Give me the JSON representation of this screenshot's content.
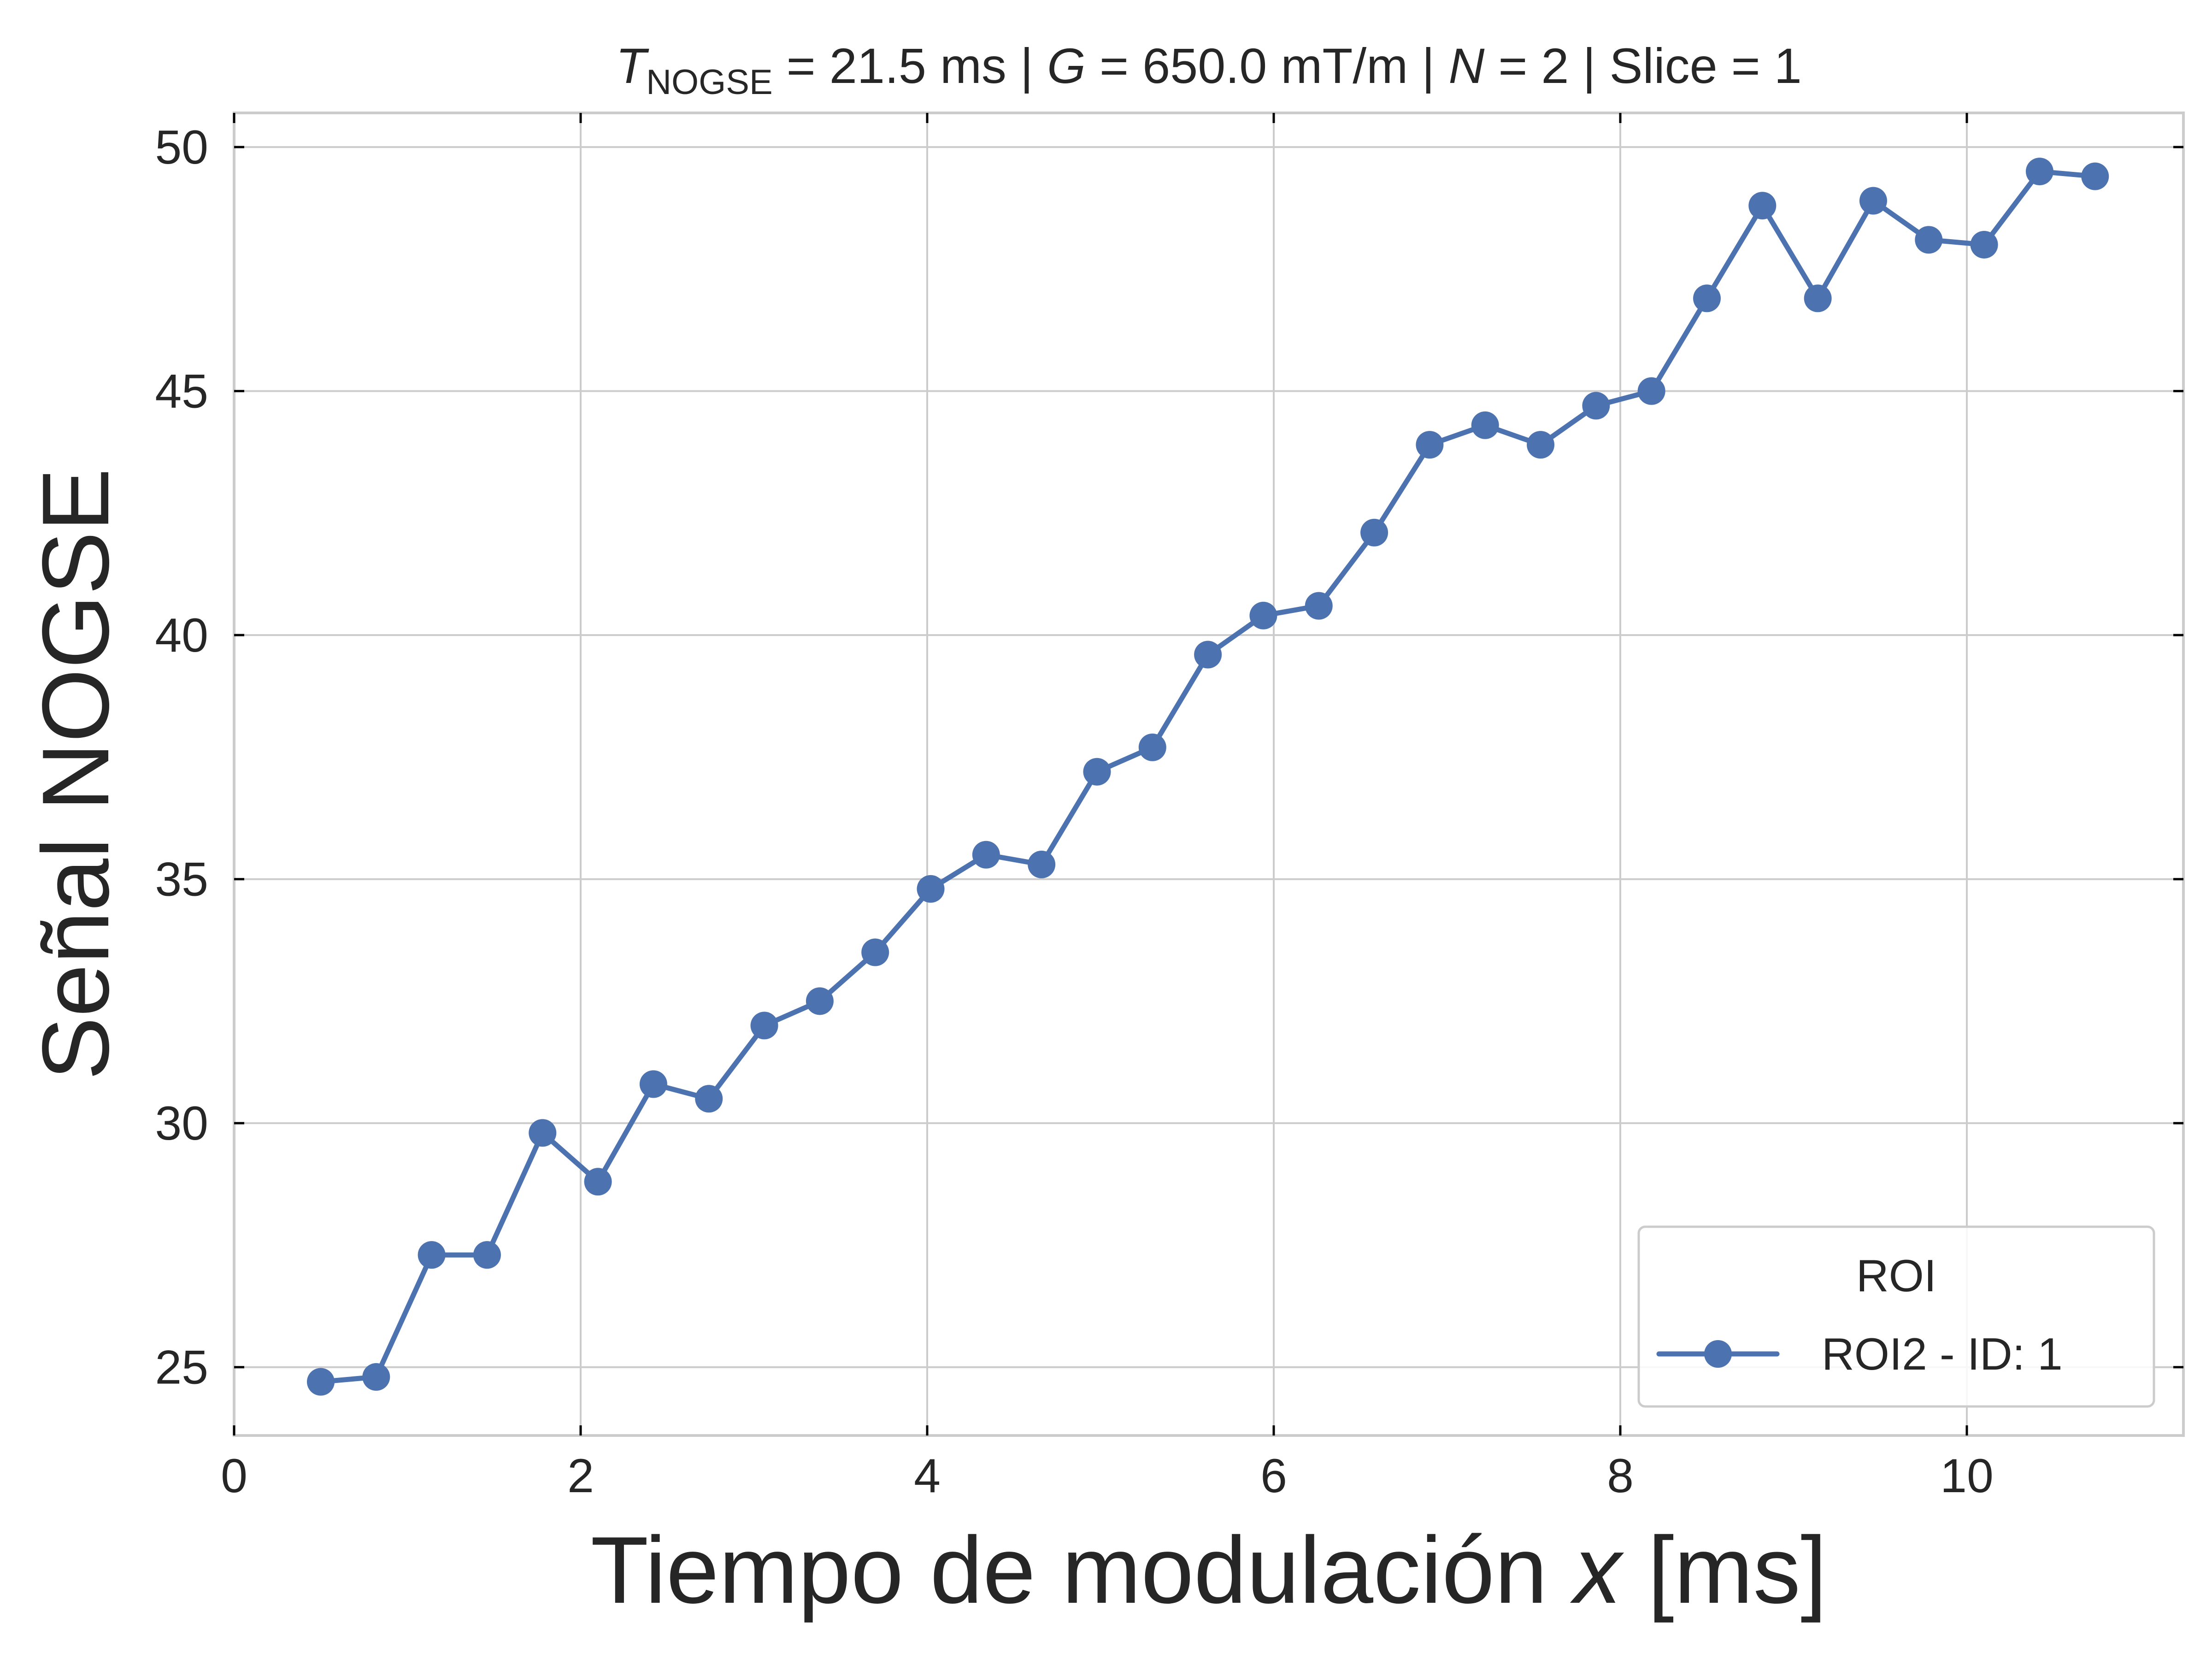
{
  "chart_data": {
    "type": "line",
    "title": {
      "parts": [
        {
          "text": "T",
          "italic": true
        },
        {
          "text": "NOGSE",
          "sub": true
        },
        {
          "text": " = 21.5 ms | "
        },
        {
          "text": "G",
          "italic": true
        },
        {
          "text": " = 650.0 mT/m | "
        },
        {
          "text": "N",
          "italic": true
        },
        {
          "text": " = 2 | Slice = 1"
        }
      ]
    },
    "xlabel": {
      "parts": [
        {
          "text": "Tiempo de modulación "
        },
        {
          "text": "x",
          "italic": true
        },
        {
          "text": " [ms]"
        }
      ]
    },
    "ylabel": "Señal NOGSE",
    "xlim": [
      0,
      11.25
    ],
    "ylim": [
      23.6,
      50.7
    ],
    "xticks": [
      0,
      2,
      4,
      6,
      8,
      10
    ],
    "yticks": [
      25,
      30,
      35,
      40,
      45,
      50
    ],
    "grid": true,
    "legend": {
      "title": "ROI",
      "position": "bottom-right"
    },
    "series": [
      {
        "name": "ROI2 - ID: 1",
        "color": "#4c72b0",
        "marker": "circle",
        "x": [
          0.5,
          0.82,
          1.14,
          1.46,
          1.78,
          2.1,
          2.42,
          2.74,
          3.06,
          3.38,
          3.7,
          4.02,
          4.34,
          4.66,
          4.98,
          5.3,
          5.62,
          5.94,
          6.26,
          6.58,
          6.9,
          7.22,
          7.54,
          7.86,
          8.18,
          8.5,
          8.82,
          9.14,
          9.46,
          9.78,
          10.1,
          10.42,
          10.74
        ],
        "y": [
          24.7,
          24.8,
          27.3,
          27.3,
          29.8,
          28.8,
          30.8,
          30.5,
          32.0,
          32.5,
          33.5,
          34.8,
          35.5,
          35.3,
          37.2,
          37.7,
          39.6,
          40.4,
          40.6,
          42.1,
          43.9,
          44.3,
          43.9,
          44.7,
          45.0,
          46.9,
          48.8,
          46.9,
          48.9,
          48.1,
          48.0,
          49.5,
          49.4
        ]
      }
    ]
  }
}
